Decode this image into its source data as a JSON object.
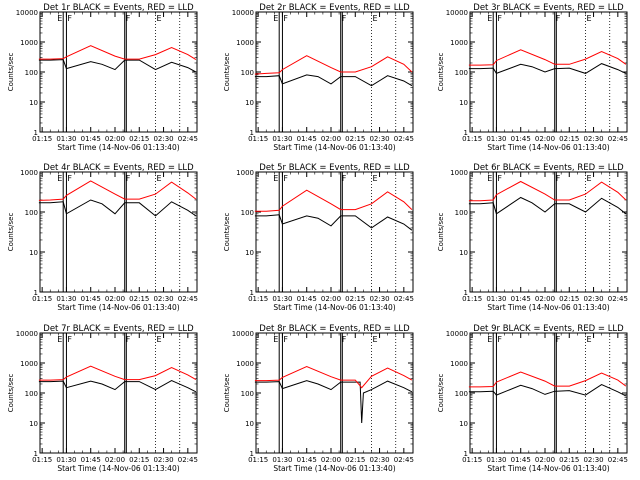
{
  "chart_data": [
    {
      "type": "line",
      "title": "Det 1r BLACK = Events, RED = LLD",
      "xlabel": "Start Time (14-Nov-06 01:13:40)",
      "ylabel": "Counts/sec",
      "yscale": "log",
      "ylim": [
        1,
        10000
      ],
      "xlim_minutes_after_01_13_40": [
        0,
        97
      ],
      "x_tick_labels": [
        "01:15",
        "01:30",
        "01:45",
        "02:00",
        "02:15",
        "02:30",
        "02:45"
      ],
      "y_tick_labels": [
        "1",
        "10",
        "100",
        "1000",
        "10000"
      ],
      "colors": {
        "events": "#000000",
        "lld": "#ff0000"
      },
      "markers": {
        "solid_lines": [
          "01:28",
          "01:30",
          "02:06",
          "02:07"
        ],
        "dotted_lines": [
          "02:25",
          "02:40"
        ],
        "labels": [
          "E",
          "F",
          "F",
          "E"
        ]
      },
      "series": [
        {
          "name": "BLACK = Events",
          "x": [
            "01:13",
            "01:20",
            "01:28",
            "01:30",
            "01:45",
            "01:52",
            "02:00",
            "02:06",
            "02:07",
            "02:15",
            "02:25",
            "02:35",
            "02:45",
            "02:50"
          ],
          "values": [
            250,
            250,
            260,
            130,
            220,
            180,
            120,
            250,
            250,
            250,
            120,
            210,
            140,
            100
          ]
        },
        {
          "name": "RED = LLD",
          "x": [
            "01:13",
            "01:20",
            "01:28",
            "01:30",
            "01:45",
            "02:00",
            "02:06",
            "02:07",
            "02:15",
            "02:25",
            "02:35",
            "02:45",
            "02:50"
          ],
          "values": [
            270,
            270,
            280,
            320,
            750,
            340,
            270,
            270,
            270,
            380,
            650,
            380,
            260
          ]
        }
      ]
    },
    {
      "type": "line",
      "title": "Det 2r BLACK = Events, RED = LLD",
      "xlabel": "Start Time (14-Nov-06 01:13:40)",
      "ylabel": "Counts/sec",
      "yscale": "log",
      "ylim": [
        1,
        10000
      ],
      "x_tick_labels": [
        "01:15",
        "01:30",
        "01:45",
        "02:00",
        "02:15",
        "02:30",
        "02:45"
      ],
      "y_tick_labels": [
        "1",
        "10",
        "100",
        "1000",
        "10000"
      ],
      "markers": {
        "solid_lines": [
          "01:28",
          "01:30",
          "02:06",
          "02:07"
        ],
        "dotted_lines": [
          "02:25",
          "02:40"
        ],
        "labels": [
          "E",
          "F",
          "F",
          "E"
        ]
      },
      "series": [
        {
          "name": "BLACK = Events",
          "x": [
            "01:13",
            "01:20",
            "01:28",
            "01:30",
            "01:45",
            "01:52",
            "02:00",
            "02:06",
            "02:07",
            "02:15",
            "02:25",
            "02:35",
            "02:45",
            "02:50"
          ],
          "values": [
            70,
            70,
            75,
            40,
            80,
            70,
            40,
            70,
            70,
            70,
            35,
            75,
            50,
            35
          ]
        },
        {
          "name": "RED = LLD",
          "x": [
            "01:13",
            "01:20",
            "01:28",
            "01:30",
            "01:45",
            "02:00",
            "02:06",
            "02:07",
            "02:15",
            "02:25",
            "02:35",
            "02:45",
            "02:50"
          ],
          "values": [
            85,
            90,
            95,
            120,
            350,
            140,
            100,
            100,
            100,
            150,
            320,
            180,
            100
          ]
        }
      ]
    },
    {
      "type": "line",
      "title": "Det 3r BLACK = Events, RED = LLD",
      "xlabel": "Start Time (14-Nov-06 01:13:40)",
      "ylabel": "Counts/sec",
      "yscale": "log",
      "ylim": [
        1,
        10000
      ],
      "x_tick_labels": [
        "01:15",
        "01:30",
        "01:45",
        "02:00",
        "02:15",
        "02:30",
        "02:45"
      ],
      "y_tick_labels": [
        "1",
        "10",
        "100",
        "1000",
        "10000"
      ],
      "markers": {
        "solid_lines": [
          "01:28",
          "01:30",
          "02:06",
          "02:07"
        ],
        "dotted_lines": [
          "02:25",
          "02:40"
        ],
        "labels": [
          "E",
          "F",
          "F",
          "E"
        ]
      },
      "series": [
        {
          "name": "BLACK = Events",
          "x": [
            "01:13",
            "01:20",
            "01:28",
            "01:30",
            "01:45",
            "01:52",
            "02:00",
            "02:06",
            "02:07",
            "02:15",
            "02:25",
            "02:35",
            "02:45",
            "02:50"
          ],
          "values": [
            130,
            130,
            135,
            90,
            180,
            150,
            100,
            130,
            130,
            135,
            90,
            190,
            120,
            90
          ]
        },
        {
          "name": "RED = LLD",
          "x": [
            "01:13",
            "01:20",
            "01:28",
            "01:30",
            "01:45",
            "02:00",
            "02:06",
            "02:07",
            "02:15",
            "02:25",
            "02:35",
            "02:45",
            "02:50"
          ],
          "values": [
            170,
            170,
            175,
            240,
            550,
            260,
            180,
            180,
            180,
            270,
            480,
            280,
            180
          ]
        }
      ]
    },
    {
      "type": "line",
      "title": "Det 4r BLACK = Events, RED = LLD",
      "xlabel": "Start Time (14-Nov-06 01:13:40)",
      "ylabel": "Counts/sec",
      "yscale": "log",
      "ylim": [
        1,
        1000
      ],
      "x_tick_labels": [
        "01:15",
        "01:30",
        "01:45",
        "02:00",
        "02:15",
        "02:30",
        "02:45"
      ],
      "y_tick_labels": [
        "1",
        "10",
        "100",
        "1000"
      ],
      "markers": {
        "solid_lines": [
          "01:28",
          "01:30",
          "02:06",
          "02:07"
        ],
        "dotted_lines": [
          "02:25",
          "02:40"
        ],
        "labels": [
          "E",
          "F",
          "F",
          "E"
        ]
      },
      "series": [
        {
          "name": "BLACK = Events",
          "x": [
            "01:13",
            "01:20",
            "01:28",
            "01:30",
            "01:45",
            "01:52",
            "02:00",
            "02:06",
            "02:07",
            "02:15",
            "02:25",
            "02:35",
            "02:45",
            "02:50"
          ],
          "values": [
            170,
            170,
            180,
            90,
            200,
            160,
            90,
            170,
            170,
            170,
            80,
            180,
            110,
            80
          ]
        },
        {
          "name": "RED = LLD",
          "x": [
            "01:13",
            "01:20",
            "01:28",
            "01:30",
            "01:45",
            "02:00",
            "02:06",
            "02:07",
            "02:15",
            "02:25",
            "02:35",
            "02:45",
            "02:50"
          ],
          "values": [
            195,
            200,
            210,
            260,
            600,
            280,
            210,
            210,
            210,
            280,
            560,
            300,
            210
          ]
        }
      ]
    },
    {
      "type": "line",
      "title": "Det 5r BLACK = Events, RED = LLD",
      "xlabel": "Start Time (14-Nov-06 01:13:40)",
      "ylabel": "Counts/sec",
      "yscale": "log",
      "ylim": [
        1,
        1000
      ],
      "x_tick_labels": [
        "01:15",
        "01:30",
        "01:45",
        "02:00",
        "02:15",
        "02:30",
        "02:45"
      ],
      "y_tick_labels": [
        "1",
        "10",
        "100",
        "1000"
      ],
      "markers": {
        "solid_lines": [
          "01:28",
          "01:30",
          "02:06",
          "02:07"
        ],
        "dotted_lines": [
          "02:25",
          "02:40"
        ],
        "labels": [
          "E",
          "F",
          "F",
          "E"
        ]
      },
      "series": [
        {
          "name": "BLACK = Events",
          "x": [
            "01:13",
            "01:20",
            "01:28",
            "01:30",
            "01:45",
            "01:52",
            "02:00",
            "02:06",
            "02:07",
            "02:15",
            "02:25",
            "02:35",
            "02:45",
            "02:50"
          ],
          "values": [
            80,
            80,
            85,
            50,
            80,
            70,
            45,
            80,
            80,
            80,
            40,
            75,
            50,
            35
          ]
        },
        {
          "name": "RED = LLD",
          "x": [
            "01:13",
            "01:20",
            "01:28",
            "01:30",
            "01:45",
            "02:00",
            "02:06",
            "02:07",
            "02:15",
            "02:25",
            "02:35",
            "02:45",
            "02:50"
          ],
          "values": [
            105,
            105,
            110,
            140,
            350,
            160,
            115,
            115,
            115,
            160,
            320,
            180,
            115
          ]
        }
      ]
    },
    {
      "type": "line",
      "title": "Det 6r BLACK = Events, RED = LLD",
      "xlabel": "Start Time (14-Nov-06 01:13:40)",
      "ylabel": "Counts/sec",
      "yscale": "log",
      "ylim": [
        1,
        1000
      ],
      "x_tick_labels": [
        "01:15",
        "01:30",
        "01:45",
        "02:00",
        "02:15",
        "02:30",
        "02:45"
      ],
      "y_tick_labels": [
        "1",
        "10",
        "100",
        "1000"
      ],
      "markers": {
        "solid_lines": [
          "01:28",
          "01:30",
          "02:06",
          "02:07"
        ],
        "dotted_lines": [
          "02:25",
          "02:40"
        ],
        "labels": [
          "E",
          "F",
          "F",
          "E"
        ]
      },
      "series": [
        {
          "name": "BLACK = Events",
          "x": [
            "01:13",
            "01:20",
            "01:28",
            "01:30",
            "01:45",
            "01:52",
            "02:00",
            "02:06",
            "02:07",
            "02:15",
            "02:25",
            "02:35",
            "02:45",
            "02:50"
          ],
          "values": [
            160,
            160,
            170,
            90,
            230,
            170,
            100,
            160,
            160,
            160,
            100,
            220,
            130,
            90
          ]
        },
        {
          "name": "RED = LLD",
          "x": [
            "01:13",
            "01:20",
            "01:28",
            "01:30",
            "01:45",
            "02:00",
            "02:06",
            "02:07",
            "02:15",
            "02:25",
            "02:35",
            "02:45",
            "02:50"
          ],
          "values": [
            190,
            190,
            200,
            270,
            580,
            280,
            200,
            200,
            200,
            280,
            560,
            310,
            200
          ]
        }
      ]
    },
    {
      "type": "line",
      "title": "Det 7r BLACK = Events, RED = LLD",
      "xlabel": "Start Time (14-Nov-06 01:13:40)",
      "ylabel": "Counts/sec",
      "yscale": "log",
      "ylim": [
        1,
        10000
      ],
      "x_tick_labels": [
        "01:15",
        "01:30",
        "01:45",
        "02:00",
        "02:15",
        "02:30",
        "02:45"
      ],
      "y_tick_labels": [
        "1",
        "10",
        "100",
        "1000",
        "10000"
      ],
      "markers": {
        "solid_lines": [
          "01:28",
          "01:30",
          "02:06",
          "02:07"
        ],
        "dotted_lines": [
          "02:25",
          "02:40"
        ],
        "labels": [
          "E",
          "F",
          "F",
          "E"
        ]
      },
      "series": [
        {
          "name": "BLACK = Events",
          "x": [
            "01:13",
            "01:20",
            "01:28",
            "01:30",
            "01:45",
            "01:52",
            "02:00",
            "02:06",
            "02:07",
            "02:15",
            "02:25",
            "02:35",
            "02:45",
            "02:50"
          ],
          "values": [
            240,
            240,
            250,
            150,
            250,
            200,
            130,
            240,
            240,
            240,
            130,
            260,
            150,
            110
          ]
        },
        {
          "name": "RED = LLD",
          "x": [
            "01:13",
            "01:20",
            "01:28",
            "01:30",
            "01:45",
            "02:00",
            "02:06",
            "02:07",
            "02:15",
            "02:25",
            "02:35",
            "02:45",
            "02:50"
          ],
          "values": [
            270,
            270,
            280,
            340,
            780,
            360,
            280,
            280,
            280,
            380,
            700,
            400,
            280
          ]
        }
      ]
    },
    {
      "type": "line",
      "title": "Det 8r BLACK = Events, RED = LLD",
      "xlabel": "Start Time (14-Nov-06 01:13:40)",
      "ylabel": "Counts/sec",
      "yscale": "log",
      "ylim": [
        1,
        10000
      ],
      "x_tick_labels": [
        "01:15",
        "01:30",
        "01:45",
        "02:00",
        "02:15",
        "02:30",
        "02:45"
      ],
      "y_tick_labels": [
        "1",
        "10",
        "100",
        "1000",
        "10000"
      ],
      "markers": {
        "solid_lines": [
          "01:28",
          "01:30",
          "02:06",
          "02:07"
        ],
        "dotted_lines": [
          "02:25",
          "02:40"
        ],
        "labels": [
          "E",
          "F",
          "F",
          "E"
        ]
      },
      "series": [
        {
          "name": "BLACK = Events",
          "x": [
            "01:13",
            "01:20",
            "01:28",
            "01:30",
            "01:45",
            "01:52",
            "02:00",
            "02:06",
            "02:07",
            "02:15",
            "02:18",
            "02:19",
            "02:20",
            "02:25",
            "02:35",
            "02:45",
            "02:50"
          ],
          "values": [
            230,
            230,
            240,
            140,
            260,
            200,
            130,
            230,
            230,
            230,
            230,
            10,
            100,
            130,
            250,
            150,
            110
          ]
        },
        {
          "name": "RED = LLD",
          "x": [
            "01:13",
            "01:20",
            "01:28",
            "01:30",
            "01:45",
            "02:00",
            "02:06",
            "02:07",
            "02:15",
            "02:19",
            "02:25",
            "02:35",
            "02:45",
            "02:50"
          ],
          "values": [
            260,
            260,
            270,
            330,
            760,
            350,
            270,
            270,
            270,
            150,
            360,
            680,
            380,
            270
          ]
        }
      ]
    },
    {
      "type": "line",
      "title": "Det 9r BLACK = Events, RED = LLD",
      "xlabel": "Start Time (14-Nov-06 01:13:40)",
      "ylabel": "Counts/sec",
      "yscale": "log",
      "ylim": [
        1,
        10000
      ],
      "x_tick_labels": [
        "01:15",
        "01:30",
        "01:45",
        "02:00",
        "02:15",
        "02:30",
        "02:45"
      ],
      "y_tick_labels": [
        "1",
        "10",
        "100",
        "1000",
        "10000"
      ],
      "markers": {
        "solid_lines": [
          "01:28",
          "01:30",
          "02:06",
          "02:07"
        ],
        "dotted_lines": [
          "02:25",
          "02:40"
        ],
        "labels": [
          "E",
          "F",
          "F",
          "E"
        ]
      },
      "series": [
        {
          "name": "BLACK = Events",
          "x": [
            "01:13",
            "01:20",
            "01:28",
            "01:30",
            "01:45",
            "01:52",
            "02:00",
            "02:06",
            "02:07",
            "02:15",
            "02:25",
            "02:35",
            "02:45",
            "02:50"
          ],
          "values": [
            110,
            110,
            115,
            85,
            180,
            140,
            90,
            115,
            115,
            120,
            85,
            190,
            110,
            80
          ]
        },
        {
          "name": "RED = LLD",
          "x": [
            "01:13",
            "01:20",
            "01:28",
            "01:30",
            "01:45",
            "02:00",
            "02:06",
            "02:07",
            "02:15",
            "02:25",
            "02:35",
            "02:45",
            "02:50"
          ],
          "values": [
            160,
            160,
            165,
            230,
            500,
            250,
            170,
            170,
            170,
            260,
            460,
            270,
            170
          ]
        }
      ]
    }
  ]
}
